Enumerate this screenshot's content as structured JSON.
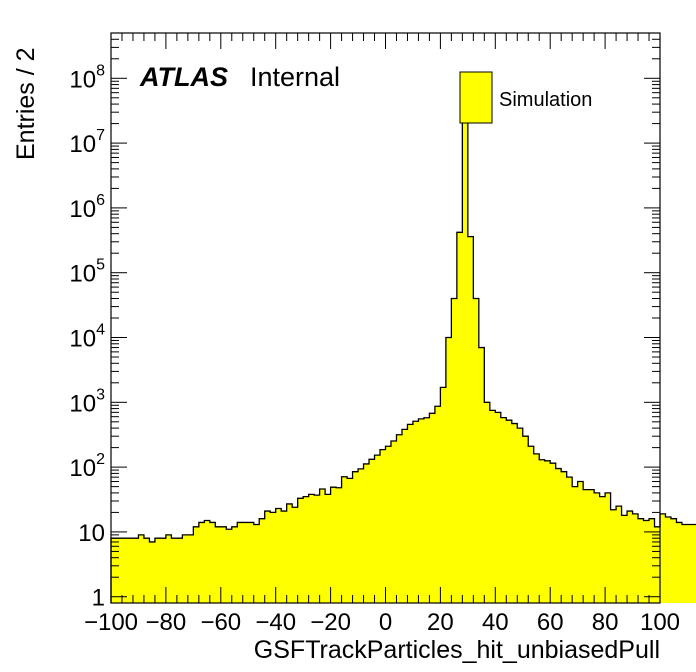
{
  "chart_data": {
    "type": "bar",
    "title": "",
    "xlabel": "GSFTrackParticles_hit_unbiasedPull",
    "ylabel": "Entries / 2",
    "xlim": [
      -100,
      100
    ],
    "ylim": [
      0.8,
      500000000.0
    ],
    "yscale": "log",
    "bin_width": 2,
    "x_ticks": [
      -100,
      -80,
      -60,
      -40,
      -20,
      0,
      20,
      40,
      60,
      80,
      100
    ],
    "x_tick_labels": [
      "−100",
      "−80",
      "−60",
      "−40",
      "−20",
      "0",
      "20",
      "40",
      "60",
      "80",
      "100"
    ],
    "y_tick_labels": [
      {
        "value": 1,
        "base": "1",
        "exp": ""
      },
      {
        "value": 10,
        "base": "10",
        "exp": ""
      },
      {
        "value": 100,
        "base": "10",
        "exp": "2"
      },
      {
        "value": 1000,
        "base": "10",
        "exp": "3"
      },
      {
        "value": 10000,
        "base": "10",
        "exp": "4"
      },
      {
        "value": 100000,
        "base": "10",
        "exp": "5"
      },
      {
        "value": 1000000,
        "base": "10",
        "exp": "6"
      },
      {
        "value": 10000000,
        "base": "10",
        "exp": "7"
      },
      {
        "value": 100000000,
        "base": "10",
        "exp": "8"
      }
    ],
    "label_atlas": "ATLAS",
    "label_status": "Internal",
    "legend": {
      "placement": "top-right",
      "entries": [
        {
          "name": "Simulation",
          "color": "#ffff00"
        }
      ]
    },
    "fill_color": "#ffff00",
    "line_color": "#000000",
    "series": [
      {
        "name": "Simulation",
        "bin_edges_start": -100,
        "values": [
          8,
          8,
          8,
          8,
          8,
          9,
          8,
          7,
          8,
          8,
          9,
          8,
          8,
          9,
          9,
          12,
          14,
          15,
          14,
          12,
          12,
          11,
          12,
          14,
          14,
          14,
          13,
          16,
          21,
          20,
          23,
          21,
          27,
          24,
          33,
          35,
          38,
          37,
          46,
          38,
          49,
          48,
          71,
          67,
          85,
          94,
          112,
          132,
          153,
          186,
          210,
          253,
          316,
          382,
          456,
          510,
          555,
          578,
          676,
          870,
          1700,
          10000,
          40000,
          420000,
          30000000,
          360000,
          40000,
          7000,
          1000,
          750,
          700,
          580,
          530,
          470,
          400,
          300,
          210,
          160,
          130,
          125,
          115,
          95,
          85,
          70,
          50,
          60,
          45,
          45,
          40,
          35,
          40,
          22,
          25,
          18,
          21,
          19,
          16,
          15,
          16,
          12,
          19,
          17,
          16,
          14,
          13,
          13,
          13,
          11,
          15,
          11,
          11,
          6,
          6,
          9,
          12,
          8,
          13,
          5,
          8,
          12,
          12,
          6,
          7,
          8,
          8,
          3,
          2,
          7,
          2,
          8
        ]
      }
    ]
  }
}
